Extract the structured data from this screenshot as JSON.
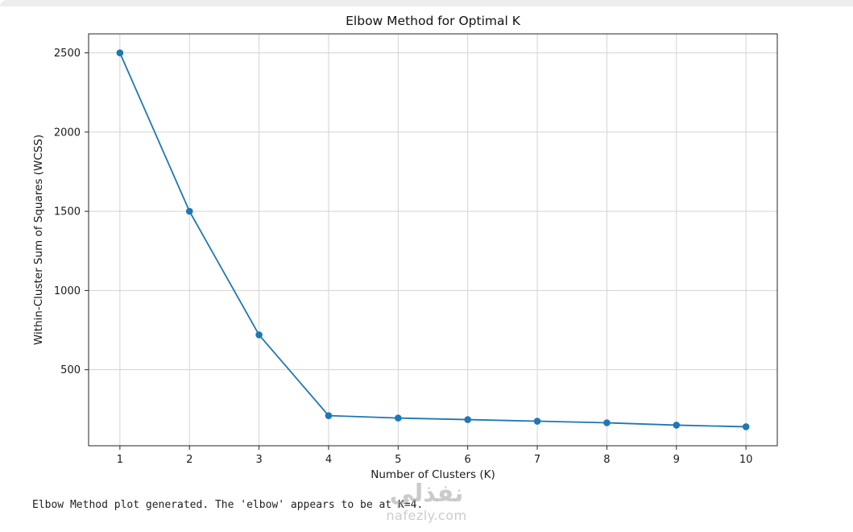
{
  "chart_data": {
    "type": "line",
    "title": "Elbow Method for Optimal K",
    "xlabel": "Number of Clusters (K)",
    "ylabel": "Within-Cluster Sum of Squares (WCSS)",
    "x": [
      1,
      2,
      3,
      4,
      5,
      6,
      7,
      8,
      9,
      10
    ],
    "series": [
      {
        "name": "WCSS",
        "values": [
          2500,
          1500,
          720,
          210,
          195,
          185,
          175,
          165,
          150,
          140
        ]
      }
    ],
    "xticks": [
      1,
      2,
      3,
      4,
      5,
      6,
      7,
      8,
      9,
      10
    ],
    "yticks": [
      500,
      1000,
      1500,
      2000,
      2500
    ],
    "xlim": [
      0.55,
      10.45
    ],
    "ylim": [
      20,
      2620
    ],
    "grid": true,
    "legend": "none",
    "line_color": "#1f77b4",
    "marker": "o",
    "grid_color": "#d3d3d3",
    "spine_color": "#262626",
    "text_color": "#1a1a1a"
  },
  "status_text": "Elbow Method plot generated. The 'elbow' appears to be at K=4.",
  "watermark": {
    "arabic": "نفذلي",
    "domain": "nafezly.com"
  }
}
